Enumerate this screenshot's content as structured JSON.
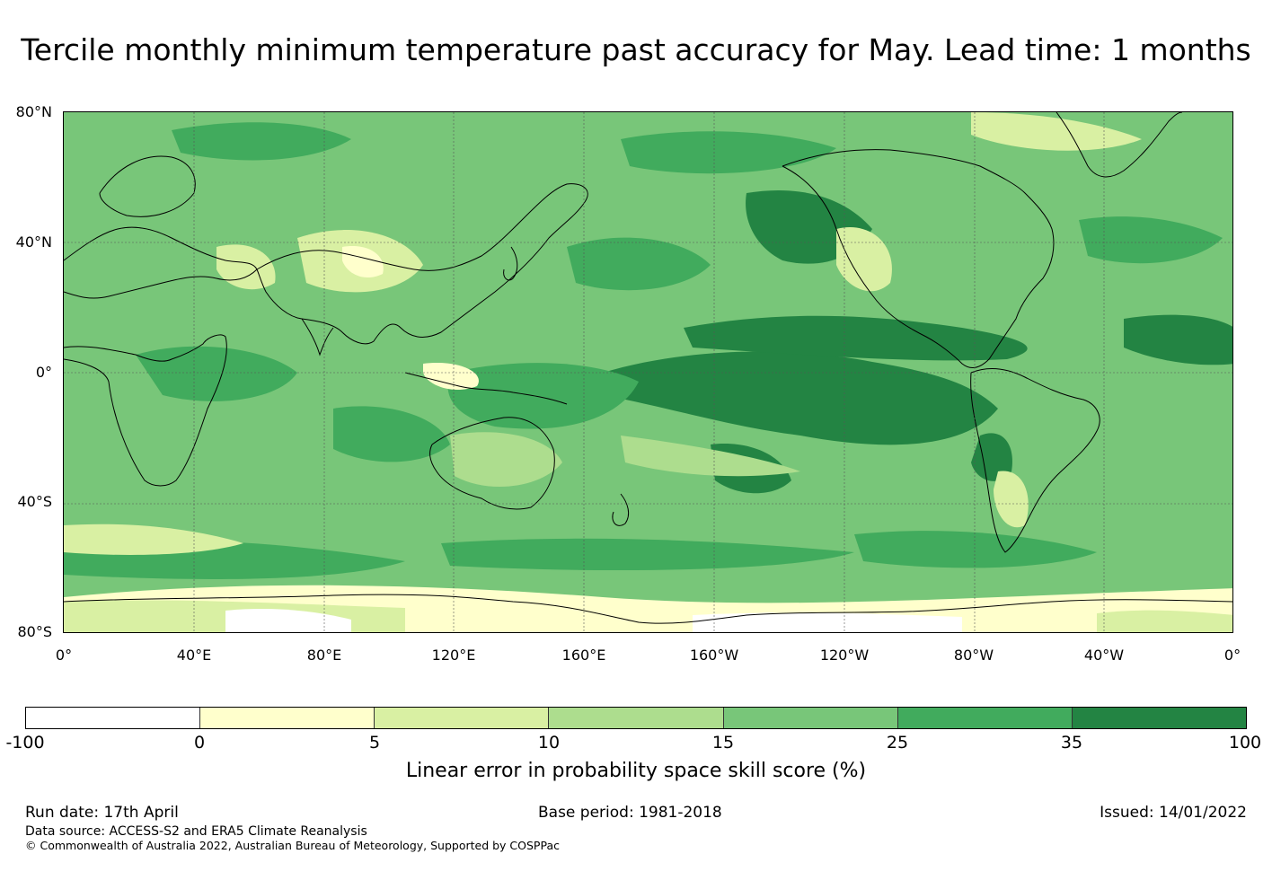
{
  "title": "Tercile monthly minimum temperature past accuracy for May. Lead time: 1 months",
  "map": {
    "lat_labels": [
      "80°N",
      "40°N",
      "0°",
      "40°S",
      "80°S"
    ],
    "lon_labels": [
      "0°",
      "40°E",
      "80°E",
      "120°E",
      "160°E",
      "160°W",
      "120°W",
      "80°W",
      "40°W",
      "0°"
    ]
  },
  "colorbar": {
    "label": "Linear error in probability space skill score (%)",
    "ticks": [
      "-100",
      "0",
      "5",
      "10",
      "15",
      "25",
      "35",
      "100"
    ],
    "colors": [
      "#ffffff",
      "#ffffcc",
      "#d9f0a3",
      "#addd8e",
      "#78c679",
      "#41ab5d",
      "#238443"
    ]
  },
  "footer": {
    "run_date": "Run date: 17th April",
    "base_period": "Base period: 1981-2018",
    "issued": "Issued: 14/01/2022",
    "data_source": "Data source: ACCESS-S2 and ERA5 Climate Reanalysis",
    "copyright": "© Commonwealth of Australia 2022, Australian Bureau of Meteorology, Supported by COSPPac"
  }
}
